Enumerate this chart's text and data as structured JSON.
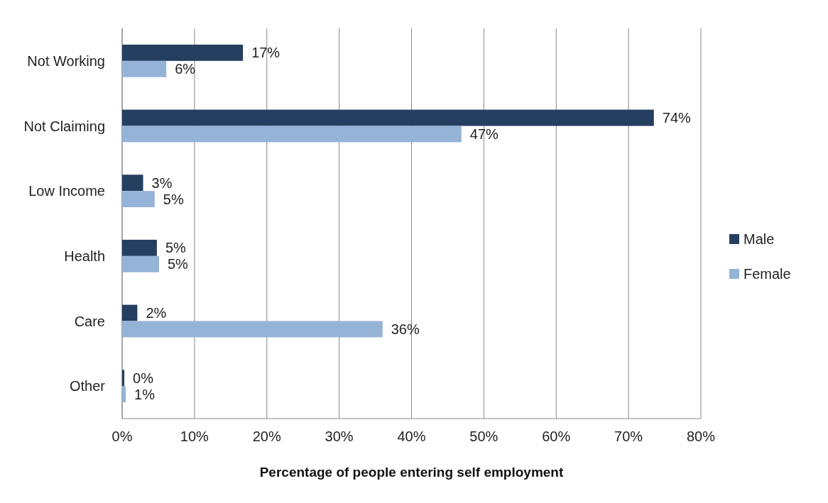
{
  "chart_data": {
    "type": "bar",
    "orientation": "horizontal",
    "xlabel": "Percentage of people entering  self employment",
    "categories": [
      "Not Working",
      "Not Claiming",
      "Low Income",
      "Health",
      "Care",
      "Other"
    ],
    "series": [
      {
        "name": "Male",
        "color": "#243f60",
        "values": [
          16.7,
          73.5,
          2.9,
          4.8,
          2.1,
          0.3
        ],
        "value_labels": [
          "17%",
          "74%",
          "3%",
          "5%",
          "2%",
          "0%"
        ]
      },
      {
        "name": "Female",
        "color": "#95b3d7",
        "values": [
          6.1,
          46.9,
          4.5,
          5.1,
          36.0,
          0.5
        ],
        "value_labels": [
          "6%",
          "47%",
          "5%",
          "5%",
          "36%",
          "1%"
        ]
      }
    ],
    "xlim": [
      0,
      80
    ],
    "xticks": [
      {
        "value": 0,
        "label": "0%"
      },
      {
        "value": 10,
        "label": "10%"
      },
      {
        "value": 20,
        "label": "20%"
      },
      {
        "value": 30,
        "label": "30%"
      },
      {
        "value": 40,
        "label": "40%"
      },
      {
        "value": 50,
        "label": "50%"
      },
      {
        "value": 60,
        "label": "60%"
      },
      {
        "value": 70,
        "label": "70%"
      },
      {
        "value": 80,
        "label": "80%"
      }
    ],
    "grid": "x",
    "legend": "right"
  }
}
